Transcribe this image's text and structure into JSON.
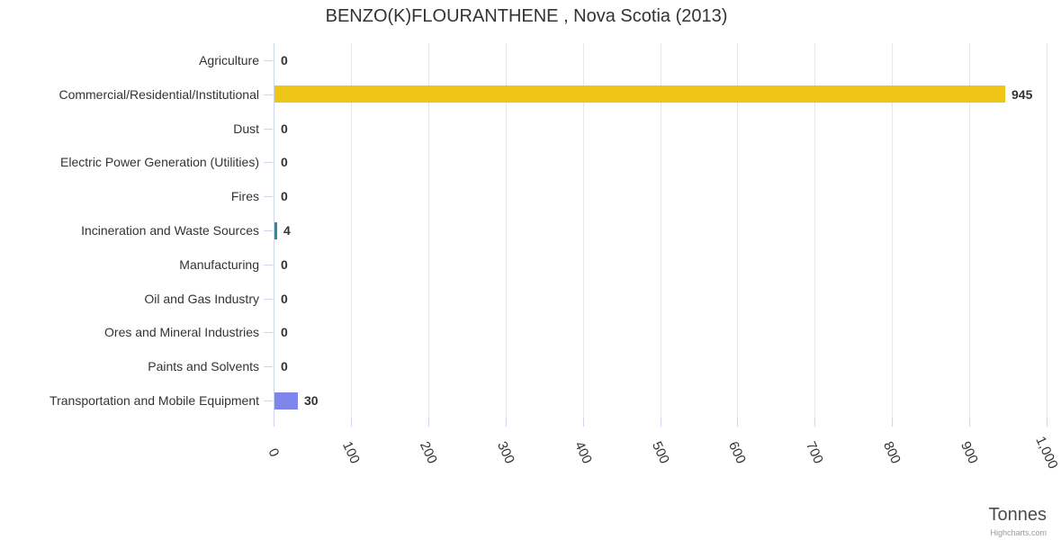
{
  "chart": {
    "credit": "Highcharts.com"
  },
  "chart_data": {
    "type": "bar",
    "orientation": "horizontal",
    "title": "BENZO(K)FLOURANTHENE , Nova Scotia (2013)",
    "value_axis_title": "Tonnes",
    "categories": [
      "Agriculture",
      "Commercial/Residential/Institutional",
      "Dust",
      "Electric Power Generation (Utilities)",
      "Fires",
      "Incineration and Waste Sources",
      "Manufacturing",
      "Oil and Gas Industry",
      "Ores and Mineral Industries",
      "Paints and Solvents",
      "Transportation and Mobile Equipment"
    ],
    "values": [
      0,
      945,
      0,
      0,
      0,
      4,
      0,
      0,
      0,
      0,
      30
    ],
    "data_labels": [
      "0",
      "945",
      "0",
      "0",
      "0",
      "4",
      "0",
      "0",
      "0",
      "0",
      "30"
    ],
    "bar_colors": [
      null,
      "#EFC617",
      null,
      null,
      null,
      "#2B908F",
      null,
      null,
      null,
      null,
      "#8085E9"
    ],
    "xlim": [
      0,
      1000
    ],
    "x_ticks": [
      0,
      100,
      200,
      300,
      400,
      500,
      600,
      700,
      800,
      900,
      1000
    ],
    "x_tick_labels": [
      "0",
      "100",
      "200",
      "300",
      "400",
      "500",
      "600",
      "700",
      "800",
      "900",
      "1,000"
    ],
    "grid": true,
    "legend": false,
    "colors": {
      "grid": "#e6e6e6",
      "axis": "#ccd6eb",
      "text": "#333333",
      "background": "#ffffff"
    }
  }
}
